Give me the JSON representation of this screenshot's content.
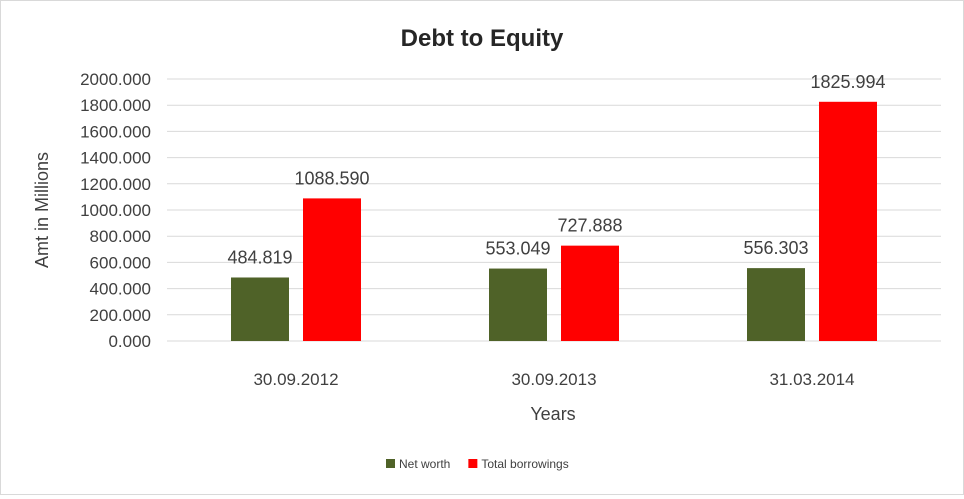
{
  "chart_data": {
    "type": "bar",
    "title": "Debt to Equity",
    "xlabel": "Years",
    "ylabel": "Amt in Millions",
    "categories": [
      "30.09.2012",
      "30.09.2013",
      "31.03.2014"
    ],
    "series": [
      {
        "name": "Net worth",
        "color": "#4F6228",
        "values": [
          484.819,
          553.049,
          556.303
        ],
        "labels": [
          "484.819",
          "553.049",
          "556.303"
        ]
      },
      {
        "name": "Total borrowings",
        "color": "#FF0000",
        "values": [
          1088.59,
          727.888,
          1825.994
        ],
        "labels": [
          "1088.590",
          "727.888",
          "1825.994"
        ]
      }
    ],
    "ylim": [
      0,
      2000
    ],
    "yticks": [
      0,
      200,
      400,
      600,
      800,
      1000,
      1200,
      1400,
      1600,
      1800,
      2000
    ],
    "ytick_labels": [
      "0.000",
      "200.000",
      "400.000",
      "600.000",
      "800.000",
      "1000.000",
      "1200.000",
      "1400.000",
      "1600.000",
      "1800.000",
      "2000.000"
    ],
    "grid": true,
    "legend_position": "bottom"
  }
}
